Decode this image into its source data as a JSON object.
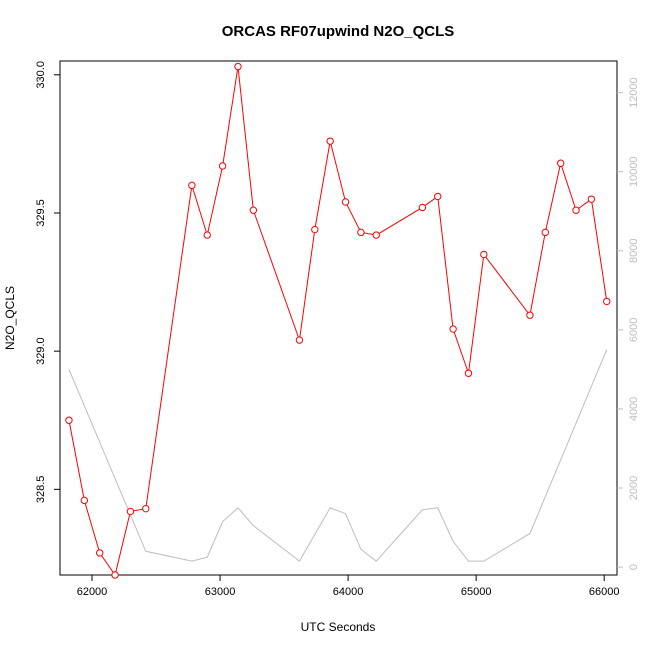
{
  "chart_data": {
    "type": "line",
    "title": "ORCAS RF07upwind N2O_QCLS",
    "xlabel": "UTC Seconds",
    "ylabel": "N2O_QCLS",
    "xlim": [
      61750,
      66100
    ],
    "ylim": [
      328.19,
      330.05
    ],
    "y2lim": [
      -200,
      12800
    ],
    "x_ticks": [
      62000,
      63000,
      64000,
      65000,
      66000
    ],
    "y_ticks": [
      328.5,
      329.0,
      329.5,
      330.0
    ],
    "y_tick_labels": [
      "328.5",
      "329.0",
      "329.5",
      "330.0"
    ],
    "y2_ticks": [
      0,
      2000,
      4000,
      6000,
      8000,
      10000,
      12000
    ],
    "grid": false,
    "series": [
      {
        "color": "#ff0000",
        "axis": "left",
        "markers": "open-circle",
        "x": [
          61820,
          61940,
          62060,
          62180,
          62300,
          62420,
          62780,
          62900,
          63020,
          63140,
          63260,
          63620,
          63740,
          63860,
          63980,
          64100,
          64220,
          64580,
          64700,
          64820,
          64940,
          65060,
          65420,
          65540,
          65660,
          65780,
          65900,
          66020
        ],
        "y": [
          328.75,
          328.46,
          328.27,
          328.19,
          328.42,
          328.43,
          329.6,
          329.42,
          329.67,
          330.03,
          329.51,
          329.04,
          329.44,
          329.76,
          329.54,
          329.43,
          329.42,
          329.52,
          329.56,
          329.08,
          328.92,
          329.35,
          329.13,
          329.43,
          329.68,
          329.51,
          329.55,
          329.18
        ]
      },
      {
        "color": "#bdbdbd",
        "axis": "right",
        "markers": "none",
        "x": [
          61820,
          62420,
          62780,
          62900,
          63020,
          63140,
          63260,
          63620,
          63860,
          63980,
          64100,
          64220,
          64580,
          64700,
          64820,
          64940,
          65060,
          65420,
          66020
        ],
        "y": [
          5000,
          400,
          150,
          250,
          1150,
          1500,
          1050,
          150,
          1500,
          1350,
          450,
          150,
          1450,
          1500,
          650,
          150,
          150,
          850,
          5500
        ]
      }
    ]
  }
}
